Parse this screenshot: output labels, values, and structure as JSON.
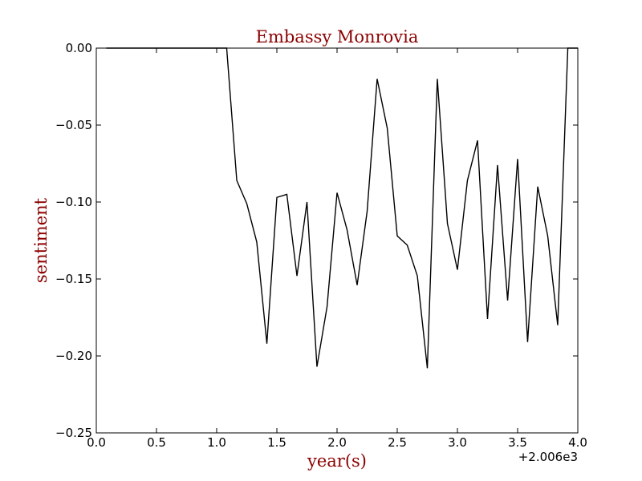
{
  "chart_data": {
    "type": "line",
    "title": "Embassy Monrovia",
    "xlabel": "year(s)",
    "ylabel": "sentiment",
    "x_offset_label": "+2.006e3",
    "xlim": [
      2006.0,
      2010.0
    ],
    "ylim": [
      -0.25,
      0.0
    ],
    "xticks": [
      2006.0,
      2006.5,
      2007.0,
      2007.5,
      2008.0,
      2008.5,
      2009.0,
      2009.5,
      2010.0
    ],
    "xtick_labels": [
      "0.0",
      "0.5",
      "1.0",
      "1.5",
      "2.0",
      "2.5",
      "3.0",
      "3.5",
      "4.0"
    ],
    "yticks": [
      0.0,
      -0.05,
      -0.1,
      -0.15,
      -0.2,
      -0.25
    ],
    "ytick_labels": [
      "0.00",
      "−0.05",
      "−0.10",
      "−0.15",
      "−0.20",
      "−0.25"
    ],
    "grid": false,
    "line_color": "#000000",
    "title_color": "#8b0000",
    "series": [
      {
        "x": [
          2006.083,
          2006.167,
          2006.25,
          2006.333,
          2006.417,
          2006.5,
          2006.583,
          2006.667,
          2006.75,
          2006.833,
          2006.917,
          2007.0,
          2007.083,
          2007.167,
          2007.25,
          2007.333,
          2007.417,
          2007.5,
          2007.583,
          2007.667,
          2007.75,
          2007.833,
          2007.917,
          2008.0,
          2008.083,
          2008.167,
          2008.25,
          2008.333,
          2008.417,
          2008.5,
          2008.583,
          2008.667,
          2008.75,
          2008.833,
          2008.917,
          2009.0,
          2009.083,
          2009.167,
          2009.25,
          2009.333,
          2009.417,
          2009.5,
          2009.583,
          2009.667,
          2009.75,
          2009.833,
          2009.917,
          2010.0
        ],
        "y": [
          0.0,
          0.0,
          0.0,
          0.0,
          0.0,
          0.0,
          0.0,
          0.0,
          0.0,
          0.0,
          0.0,
          0.0,
          0.0,
          -0.086,
          -0.101,
          -0.126,
          -0.192,
          -0.097,
          -0.095,
          -0.148,
          -0.1,
          -0.207,
          -0.168,
          -0.094,
          -0.118,
          -0.154,
          -0.106,
          -0.02,
          -0.052,
          -0.122,
          -0.128,
          -0.148,
          -0.208,
          -0.02,
          -0.114,
          -0.144,
          -0.086,
          -0.06,
          -0.176,
          -0.076,
          -0.164,
          -0.072,
          -0.191,
          -0.09,
          -0.122,
          -0.18,
          0.0,
          0.0
        ]
      }
    ]
  }
}
